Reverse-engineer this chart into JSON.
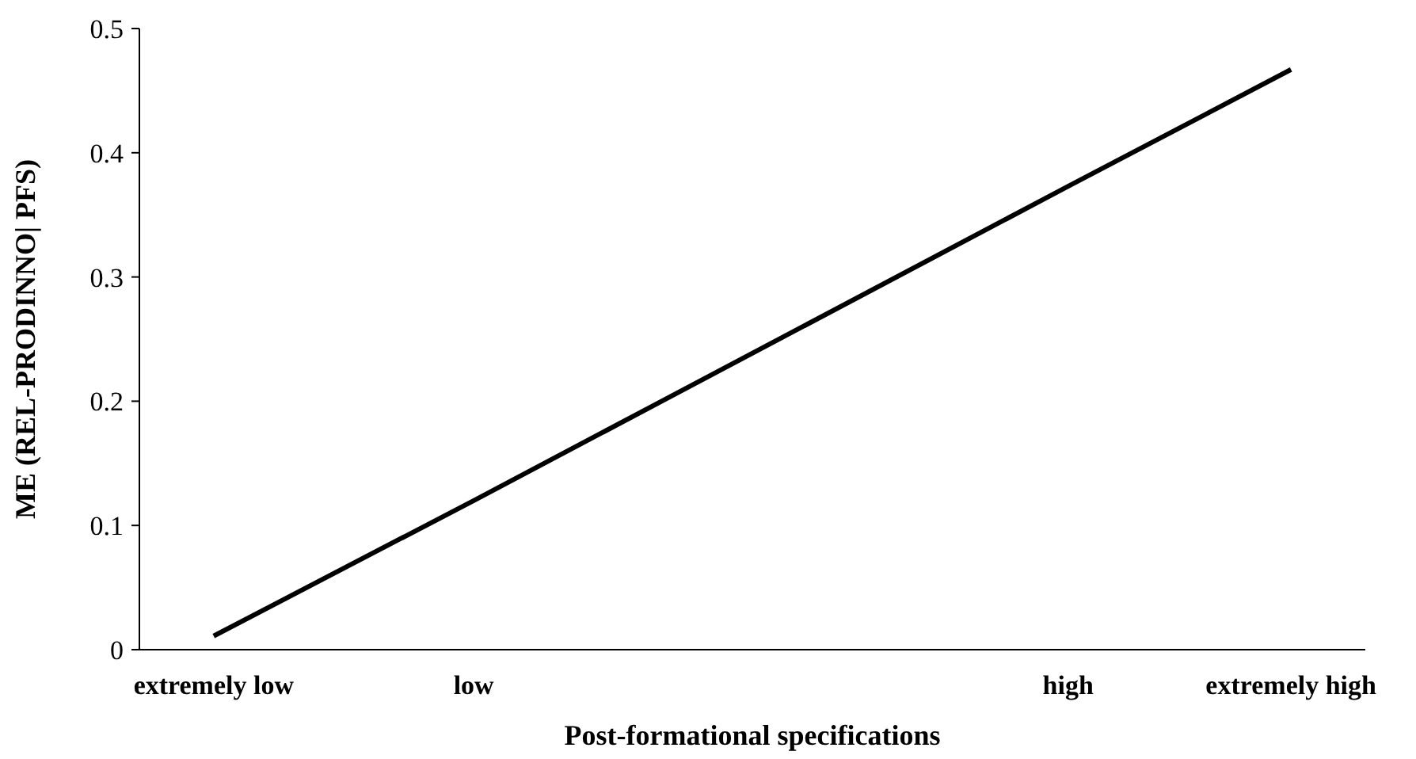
{
  "chart_data": {
    "type": "line",
    "xlabel": "Post-formational specifications",
    "ylabel": "ME (REL-PRODINNO| PFS)",
    "categories": [
      "extremely low",
      null,
      null,
      null,
      null,
      null,
      null,
      "low",
      null,
      null,
      null,
      null,
      null,
      null,
      null,
      null,
      null,
      null,
      null,
      null,
      null,
      null,
      null,
      "high",
      null,
      null,
      null,
      null,
      null,
      "extremely high"
    ],
    "series": [
      {
        "color": "#000000",
        "values": [
          0.011,
          null,
          null,
          null,
          null,
          null,
          null,
          0.12,
          null,
          null,
          null,
          null,
          null,
          null,
          null,
          null,
          null,
          null,
          null,
          null,
          null,
          null,
          null,
          0.373,
          null,
          null,
          null,
          null,
          null,
          0.467
        ]
      }
    ],
    "ylim": [
      0,
      0.5
    ],
    "yticks": [
      0,
      0.1,
      0.2,
      0.3,
      0.4,
      0.5
    ],
    "grid": false,
    "marker": "none",
    "line_style": "solid"
  }
}
